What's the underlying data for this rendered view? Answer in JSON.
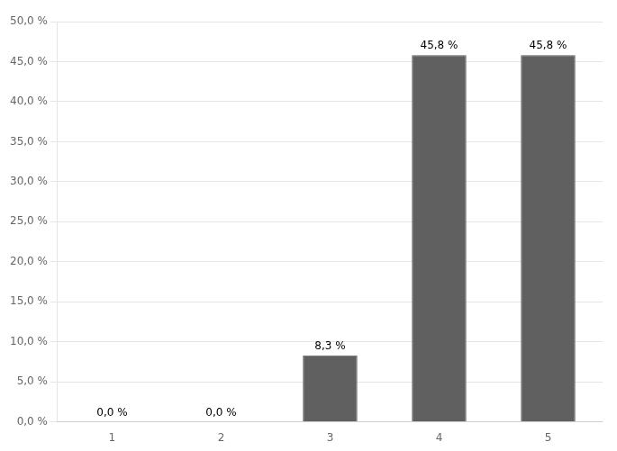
{
  "chart_data": {
    "type": "bar",
    "categories": [
      "1",
      "2",
      "3",
      "4",
      "5"
    ],
    "values": [
      0.0,
      0.0,
      8.3,
      45.8,
      45.8
    ],
    "value_labels": [
      "0,0 %",
      "0,0 %",
      "8,3 %",
      "45,8 %",
      "45,8 %"
    ],
    "data_labels": true,
    "color": "#606060",
    "ylim": [
      0,
      50
    ],
    "yticks": [
      {
        "value": 0,
        "label": "0,0 %"
      },
      {
        "value": 5,
        "label": "5,0 %"
      },
      {
        "value": 10,
        "label": "10,0 %"
      },
      {
        "value": 15,
        "label": "15,0 %"
      },
      {
        "value": 20,
        "label": "20,0 %"
      },
      {
        "value": 25,
        "label": "25,0 %"
      },
      {
        "value": 30,
        "label": "30,0 %"
      },
      {
        "value": 35,
        "label": "35,0 %"
      },
      {
        "value": 40,
        "label": "40,0 %"
      },
      {
        "value": 45,
        "label": "45,0 %"
      },
      {
        "value": 50,
        "label": "50,0 %"
      }
    ],
    "grid": true
  }
}
